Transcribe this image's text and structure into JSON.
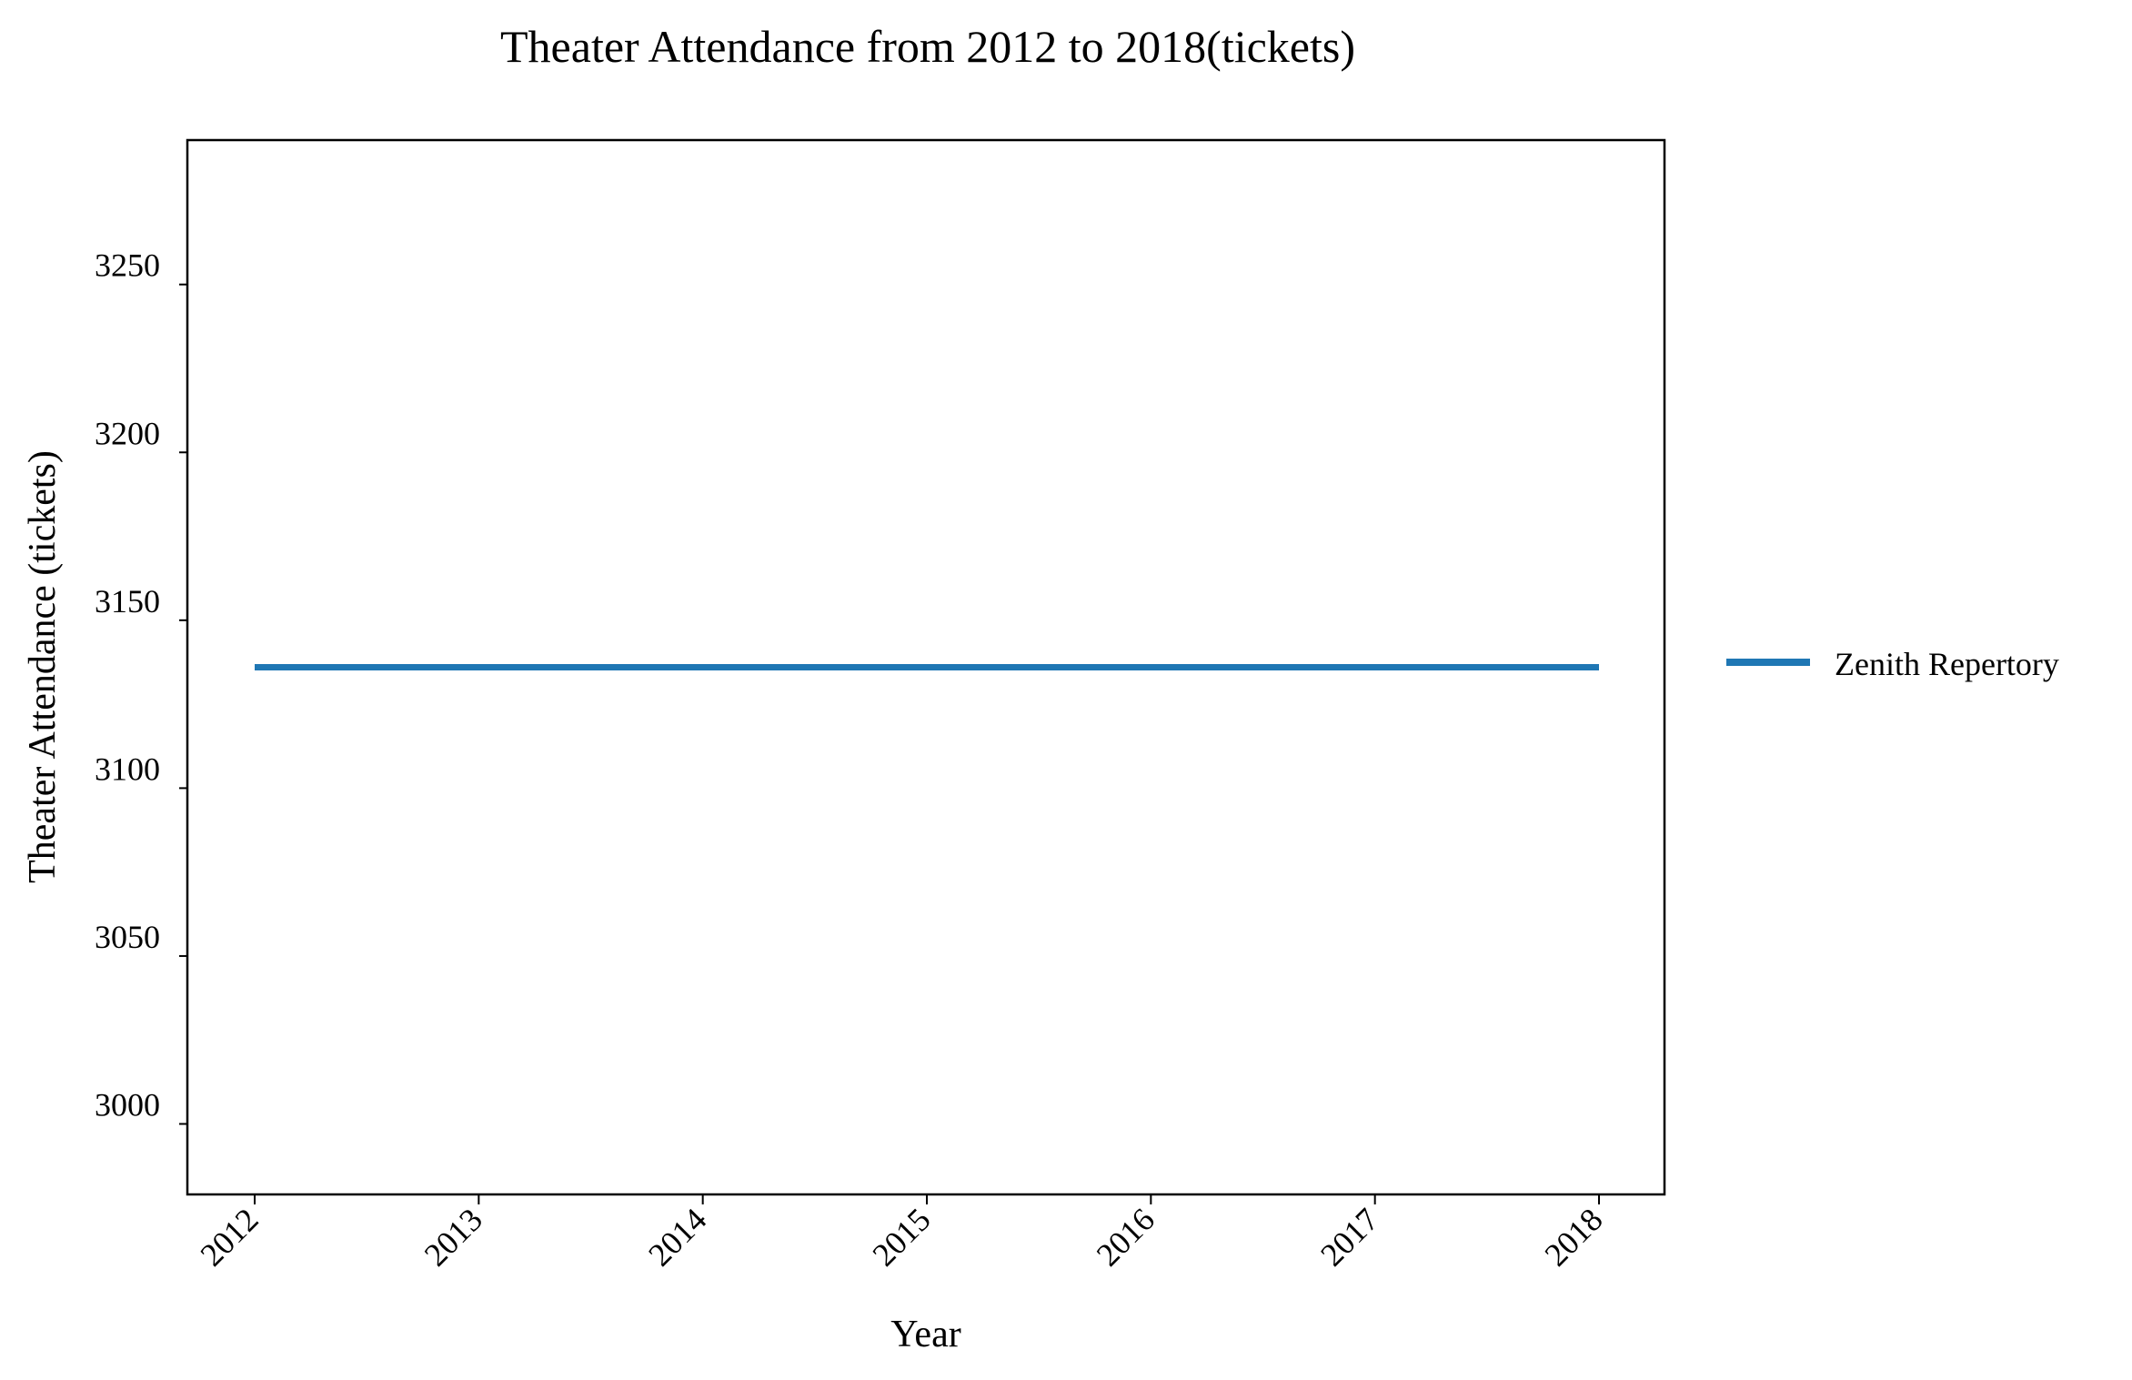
{
  "chart_data": {
    "type": "line",
    "title": "Theater Attendance from 2012 to 2018(tickets)",
    "xlabel": "Year",
    "ylabel": "Theater Attendance (tickets)",
    "x": [
      "2012",
      "2013",
      "2014",
      "2015",
      "2016",
      "2017",
      "2018"
    ],
    "series": [
      {
        "name": "Zenith Repertory",
        "values": [
          3136,
          3136,
          3136,
          3136,
          3136,
          3136,
          3136
        ],
        "color": "#1f77b4"
      }
    ],
    "yticks": [
      "3000",
      "3050",
      "3100",
      "3150",
      "3200",
      "3250"
    ],
    "ylim": [
      2979,
      3293
    ],
    "grid": false,
    "legend_position": "right"
  }
}
